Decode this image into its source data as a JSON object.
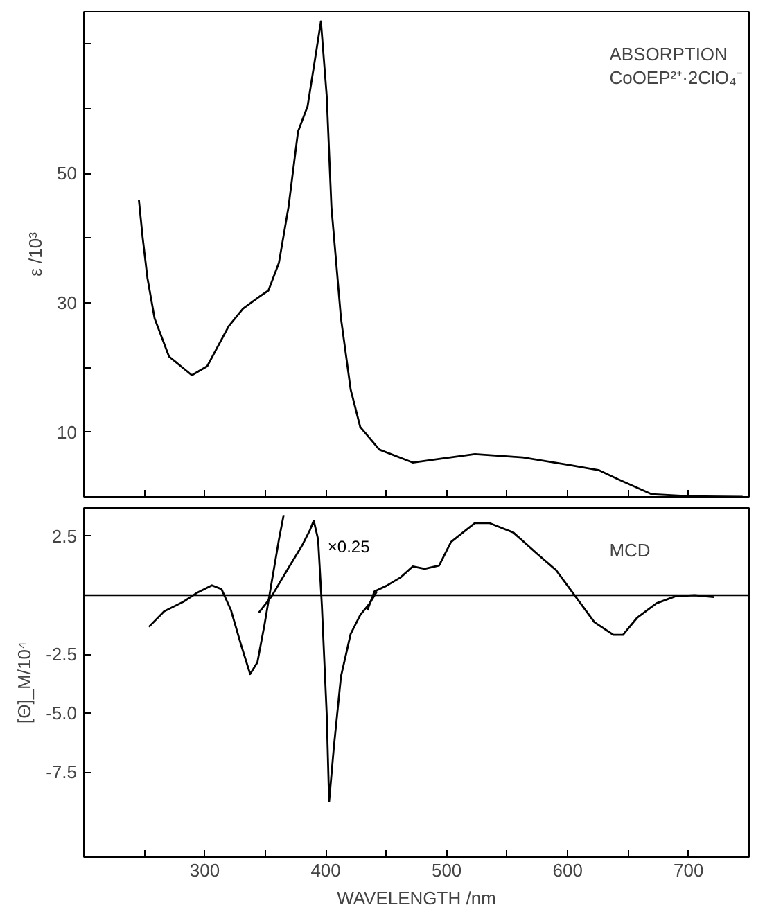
{
  "chart_data": [
    {
      "type": "line",
      "ylabel": "ε /10³",
      "annotations": [
        "ABSORPTION",
        "CoOEP²⁺·2ClO₄⁻"
      ],
      "xlim": [
        200,
        750
      ],
      "xticks": [
        {
          "value": 250,
          "label": null
        },
        {
          "value": 300,
          "label": null
        },
        {
          "value": 350,
          "label": null
        },
        {
          "value": 400,
          "label": null
        },
        {
          "value": 450,
          "label": null
        },
        {
          "value": 500,
          "label": null
        },
        {
          "value": 550,
          "label": null
        },
        {
          "value": 600,
          "label": null
        },
        {
          "value": 650,
          "label": null
        },
        {
          "value": 700,
          "label": null
        }
      ],
      "ylim": [
        0,
        75
      ],
      "yticks": [
        {
          "value": 10,
          "label": "10"
        },
        {
          "value": 20,
          "label": null
        },
        {
          "value": 30,
          "label": "30"
        },
        {
          "value": 40,
          "label": null
        },
        {
          "value": 50,
          "label": "50"
        },
        {
          "value": 60,
          "label": null
        },
        {
          "value": 70,
          "label": null
        }
      ],
      "tick_labels": "y",
      "grid": false,
      "series": [
        {
          "color": "#000000",
          "x": [
            245.5,
            248.6,
            252.6,
            258.5,
            270.4,
            289.3,
            302,
            319.8,
            331.6,
            345.5,
            352.6,
            361.3,
            369.2,
            377.1,
            385,
            390.9,
            396,
            400.8,
            404.7,
            412.6,
            420.6,
            428.5,
            444.3,
            471.9,
            495.7,
            523.3,
            562.8,
            602.4,
            626.1,
            641.9,
            669.6,
            701.2,
            744.7
          ],
          "values": [
            45.9,
            40.1,
            33.8,
            27.6,
            21.7,
            18.8,
            20.2,
            26.4,
            29.1,
            31.0,
            31.9,
            36.2,
            44.8,
            56.5,
            60.4,
            67.4,
            73.5,
            62,
            44.8,
            27.6,
            16.6,
            10.8,
            7.3,
            5.3,
            5.9,
            6.6,
            6.1,
            4.9,
            4.1,
            2.7,
            0.4,
            0.1,
            0
          ]
        }
      ]
    },
    {
      "type": "line",
      "xlabel": "WAVELENGTH /nm",
      "ylabel": "[Θ]_M/10⁴",
      "annotations": [
        "MCD"
      ],
      "xlim": [
        200,
        750
      ],
      "xticks": [
        {
          "value": 250,
          "label": null
        },
        300,
        {
          "value": 350,
          "label": null
        },
        400,
        {
          "value": 450,
          "label": null
        },
        500,
        {
          "value": 550,
          "label": null
        },
        600,
        {
          "value": 650,
          "label": null
        },
        700
      ],
      "ylim": [
        -11.1,
        3.7
      ],
      "yticks": [
        {
          "value": 2.5,
          "label": "2.5"
        },
        {
          "value": -2.5,
          "label": "-2.5"
        },
        {
          "value": -5.0,
          "label": "-5.0"
        },
        {
          "value": -7.5,
          "label": "-7.5"
        }
      ],
      "grid": false,
      "ref_lines": [
        {
          "axis": "y",
          "value": 0,
          "color": "#000000"
        }
      ],
      "series": [
        {
          "color": "#000000",
          "x": [
            253.8,
            266.4,
            282.2,
            294.1,
            305.9,
            313.8,
            321.7,
            329.6,
            337.5,
            343.5,
            349.4,
            355.3,
            361.3,
            365.2,
            400,
            434.4,
            440.3,
            450.2,
            462,
            471.9,
            481.8,
            493.7,
            503.6,
            523.3,
            535.2,
            555,
            574.7,
            590.5,
            606.3,
            622.1,
            637.9,
            645.8,
            657.7,
            673.5,
            689.3,
            705.1,
            720.9
          ],
          "values": [
            -1.34,
            -0.68,
            -0.28,
            0.12,
            0.42,
            0.26,
            -0.64,
            -2.04,
            -3.34,
            -2.84,
            -1.24,
            0.56,
            2.36,
            3.4,
            null,
            -0.64,
            0.16,
            0.4,
            0.76,
            1.22,
            1.12,
            1.26,
            2.26,
            3.06,
            3.06,
            2.66,
            1.76,
            1.06,
            -0.04,
            -1.14,
            -1.68,
            -1.68,
            -0.94,
            -0.34,
            -0.04,
            0,
            -0.08
          ]
        },
        {
          "name": "×0.25",
          "color": "#000000",
          "x": [
            344.7,
            355.3,
            369.2,
            381,
            386.9,
            390.1,
            393.7,
            396.8,
            400.8,
            402.8,
            406.7,
            412.6,
            420.6,
            428.5,
            436.4,
            442.3
          ],
          "values": [
            -0.74,
            -0.04,
            1.16,
            2.16,
            2.76,
            3.16,
            2.36,
            -0.44,
            -5.04,
            -8.74,
            -6.44,
            -3.44,
            -1.64,
            -0.84,
            -0.34,
            0.16
          ]
        }
      ]
    }
  ]
}
